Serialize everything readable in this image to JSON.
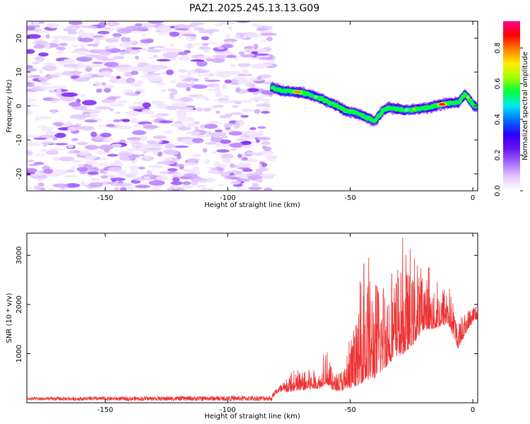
{
  "figure_title": "PAZ1.2025.245.13.13.G09",
  "chart_data": [
    {
      "type": "heatmap",
      "title": "",
      "xlabel": "Height of straight line (km)",
      "ylabel": "Frequency (Hz)",
      "xlim": [
        -182,
        2
      ],
      "ylim": [
        -25,
        25
      ],
      "x_ticks": [
        -150,
        -100,
        -50,
        0
      ],
      "y_ticks": [
        -20,
        -10,
        0,
        10,
        20
      ],
      "x_tick_labels": [
        "-150",
        "-100",
        "-50",
        "0"
      ],
      "y_tick_labels": [
        "-20",
        "-10",
        "0",
        "10",
        "20"
      ],
      "noise_region": {
        "x_range": [
          -182,
          -82
        ],
        "y_range": [
          -25,
          25
        ],
        "typical_amplitude": 0.15
      },
      "signal_track": [
        {
          "x": -82,
          "y": 5.5
        },
        {
          "x": -78,
          "y": 4.5
        },
        {
          "x": -74,
          "y": 4.2
        },
        {
          "x": -70,
          "y": 4.0
        },
        {
          "x": -66,
          "y": 3.2
        },
        {
          "x": -62,
          "y": 2.2
        },
        {
          "x": -58,
          "y": 0.8
        },
        {
          "x": -55,
          "y": 0.0
        },
        {
          "x": -52,
          "y": -1.5
        },
        {
          "x": -49,
          "y": -1.8
        },
        {
          "x": -46,
          "y": -2.5
        },
        {
          "x": -43,
          "y": -3.5
        },
        {
          "x": -40,
          "y": -4.5
        },
        {
          "x": -37,
          "y": -1.5
        },
        {
          "x": -34,
          "y": -0.5
        },
        {
          "x": -30,
          "y": -1.0
        },
        {
          "x": -26,
          "y": -1.2
        },
        {
          "x": -22,
          "y": -0.8
        },
        {
          "x": -18,
          "y": -0.5
        },
        {
          "x": -14,
          "y": 0.3
        },
        {
          "x": -10,
          "y": 0.8
        },
        {
          "x": -6,
          "y": 1.0
        },
        {
          "x": -3,
          "y": 3.5
        },
        {
          "x": 0,
          "y": 0.5
        },
        {
          "x": 1.5,
          "y": -0.5
        }
      ],
      "colorbar": {
        "label": "Normalized spectral amplitude",
        "range": [
          0.0,
          0.95
        ],
        "ticks": [
          0.0,
          0.2,
          0.4,
          0.6,
          0.8
        ],
        "tick_labels": [
          "0.0",
          "0.2",
          "0.4",
          "0.6",
          "0.8"
        ],
        "colors": [
          "#ffffff",
          "#e4c9ff",
          "#a46bff",
          "#6a10f0",
          "#2c00ff",
          "#0070ff",
          "#00e8f0",
          "#00ff40",
          "#a0ff00",
          "#ffee00",
          "#ff8000",
          "#ff0000",
          "#ff0090"
        ]
      }
    },
    {
      "type": "line",
      "title": "",
      "xlabel": "Height of straight line (km)",
      "ylabel": "SNR (10 * v/v)",
      "xlim": [
        -182,
        2
      ],
      "ylim": [
        0,
        3450
      ],
      "x_ticks": [
        -150,
        -100,
        -50,
        0
      ],
      "y_ticks": [
        1000,
        2000,
        3000
      ],
      "x_tick_labels": [
        "-150",
        "-100",
        "-50",
        "0"
      ],
      "y_tick_labels": [
        "1000",
        "2000",
        "3000"
      ],
      "color": "#ee3333",
      "envelope": [
        {
          "x": -182,
          "base": 80,
          "amp": 70
        },
        {
          "x": -82,
          "base": 90,
          "amp": 110
        },
        {
          "x": -80,
          "base": 200,
          "amp": 200
        },
        {
          "x": -70,
          "base": 250,
          "amp": 550
        },
        {
          "x": -62,
          "base": 300,
          "amp": 400
        },
        {
          "x": -60,
          "base": 400,
          "amp": 1100
        },
        {
          "x": -57,
          "base": 250,
          "amp": 400
        },
        {
          "x": -52,
          "base": 250,
          "amp": 700
        },
        {
          "x": -47,
          "base": 350,
          "amp": 1800
        },
        {
          "x": -44,
          "base": 450,
          "amp": 2900
        },
        {
          "x": -40,
          "base": 500,
          "amp": 2700
        },
        {
          "x": -36,
          "base": 700,
          "amp": 2600
        },
        {
          "x": -32,
          "base": 900,
          "amp": 2300
        },
        {
          "x": -28,
          "base": 1000,
          "amp": 2400
        },
        {
          "x": -24,
          "base": 1200,
          "amp": 1800
        },
        {
          "x": -20,
          "base": 1500,
          "amp": 1600
        },
        {
          "x": -16,
          "base": 1500,
          "amp": 1000
        },
        {
          "x": -10,
          "base": 1600,
          "amp": 1200
        },
        {
          "x": -6,
          "base": 1100,
          "amp": 700
        },
        {
          "x": -3,
          "base": 1400,
          "amp": 600
        },
        {
          "x": 0,
          "base": 1650,
          "amp": 500
        },
        {
          "x": 2,
          "base": 1700,
          "amp": 500
        }
      ]
    }
  ]
}
